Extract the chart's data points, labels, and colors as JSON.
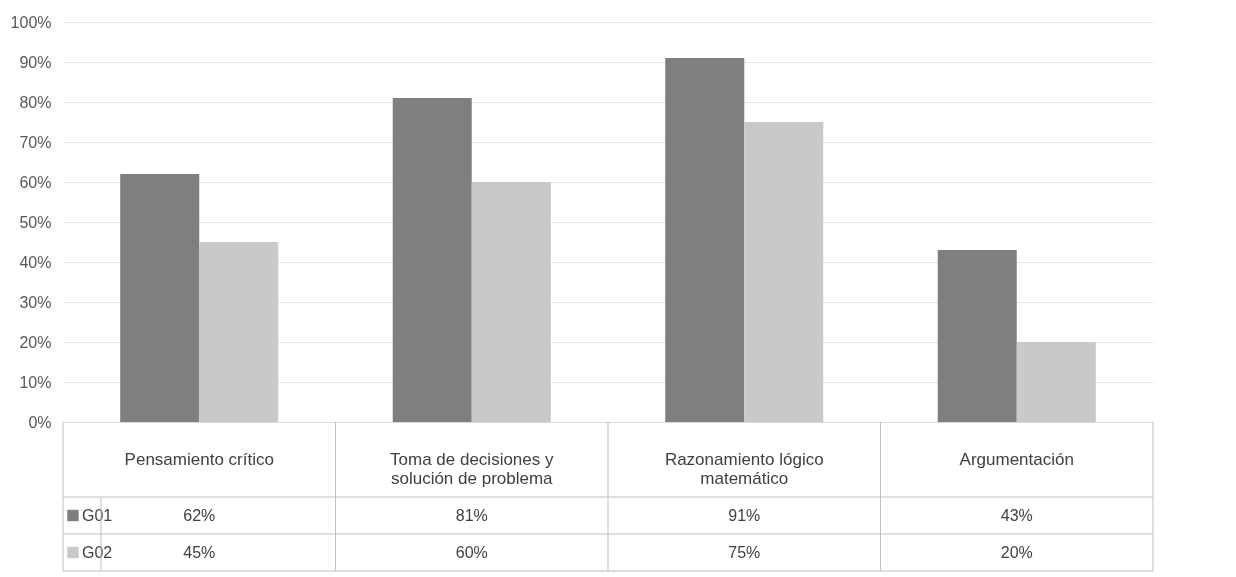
{
  "chart_data": {
    "type": "bar",
    "categories": [
      "Pensamiento crítico",
      "Toma de decisiones y solución de problema",
      "Razonamiento lógico matemático",
      "Argumentación"
    ],
    "series": [
      {
        "name": "G01",
        "color": "#7f7f7f",
        "values": [
          62,
          81,
          91,
          43
        ],
        "value_labels": [
          "62%",
          "81%",
          "91%",
          "43%"
        ]
      },
      {
        "name": "G02",
        "color": "#c9c9c9",
        "values": [
          45,
          60,
          75,
          20
        ],
        "value_labels": [
          "45%",
          "60%",
          "75%",
          "20%"
        ]
      }
    ],
    "ylim": [
      0,
      100
    ],
    "yticks": [
      {
        "value": 0,
        "label": "0%"
      },
      {
        "value": 10,
        "label": "10%"
      },
      {
        "value": 20,
        "label": "20%"
      },
      {
        "value": 30,
        "label": "30%"
      },
      {
        "value": 40,
        "label": "40%"
      },
      {
        "value": 50,
        "label": "50%"
      },
      {
        "value": 60,
        "label": "60%"
      },
      {
        "value": 70,
        "label": "70%"
      },
      {
        "value": 80,
        "label": "80%"
      },
      {
        "value": 90,
        "label": "90%"
      },
      {
        "value": 100,
        "label": "100%"
      }
    ],
    "grid": "y",
    "legend": "bottom"
  }
}
